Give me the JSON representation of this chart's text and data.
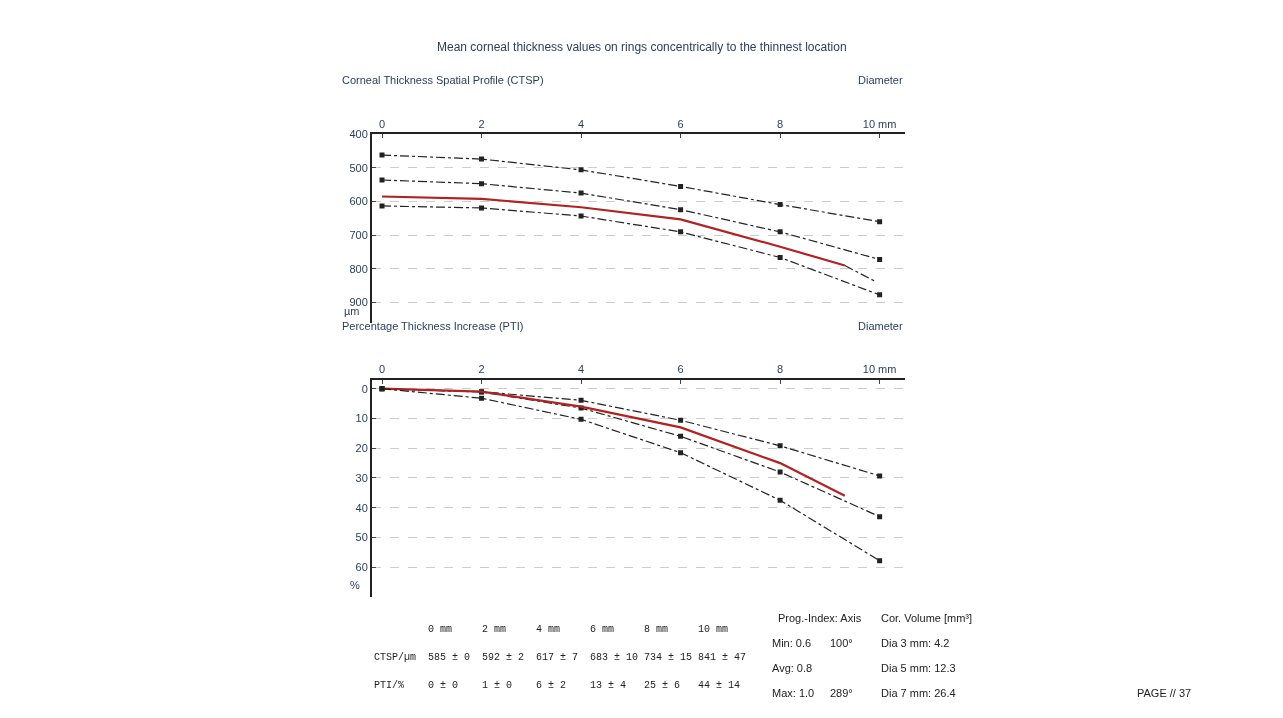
{
  "chart_data": [
    {
      "type": "line",
      "title": "Mean corneal thickness values on rings concentrically to the thinnest location",
      "subtitle": "Corneal Thickness Spatial Profile (CTSP)",
      "xlabel": "Diameter",
      "ylabel": "µm",
      "x": [
        0,
        2,
        4,
        6,
        8,
        10
      ],
      "series": [
        {
          "color": "#222222",
          "line_style": "dashed",
          "marker": "square",
          "values": [
            462,
            474,
            506,
            555,
            609,
            660
          ]
        },
        {
          "color": "#222222",
          "line_style": "dashed",
          "marker": "square",
          "values": [
            536,
            547,
            575,
            624,
            690,
            772
          ]
        },
        {
          "color": "#b22222",
          "line_style": "solid",
          "marker": "none",
          "x": [
            0,
            2,
            4,
            6,
            8,
            9.3
          ],
          "values": [
            585,
            592,
            617,
            653,
            734,
            790
          ]
        },
        {
          "color": "#222222",
          "line_style": "dashed",
          "marker": "none",
          "x": [
            9.3,
            9.9
          ],
          "values": [
            790,
            836
          ]
        },
        {
          "color": "#222222",
          "line_style": "dashed",
          "marker": "square",
          "values": [
            613,
            619,
            643,
            690,
            766,
            877
          ]
        }
      ],
      "xlim": [
        -0.2,
        10.5
      ],
      "xticks": [
        0,
        2,
        4,
        6,
        8,
        {
          "value": 10,
          "label": "10 mm"
        }
      ],
      "ylim": [
        960,
        400
      ],
      "yticks": [
        400,
        500,
        600,
        700,
        800,
        900
      ],
      "grid": "y"
    },
    {
      "type": "line",
      "title": "Percentage Thickness Increase (PTI)",
      "xlabel": "Diameter",
      "ylabel": "%",
      "x": [
        0,
        2,
        4,
        6,
        8,
        10
      ],
      "series": [
        {
          "color": "#222222",
          "line_style": "dashed",
          "marker": "square",
          "values": [
            0,
            1,
            3.9,
            10.6,
            19.2,
            29.3
          ]
        },
        {
          "color": "#222222",
          "line_style": "dashed",
          "marker": "square",
          "values": [
            0,
            1.1,
            6.5,
            16,
            28,
            43
          ]
        },
        {
          "color": "#b22222",
          "line_style": "solid",
          "marker": "none",
          "x": [
            0,
            2,
            4,
            6,
            8,
            9.3
          ],
          "values": [
            0,
            1,
            6,
            13,
            25,
            36
          ]
        },
        {
          "color": "#222222",
          "line_style": "dashed",
          "marker": "square",
          "values": [
            0,
            3.2,
            10.3,
            21.5,
            37.5,
            57.8
          ]
        }
      ],
      "xlim": [
        -0.2,
        10.5
      ],
      "xticks": [
        0,
        2,
        4,
        6,
        8,
        {
          "value": 10,
          "label": "10 mm"
        }
      ],
      "ylim": [
        70,
        -3
      ],
      "yticks": [
        0,
        10,
        20,
        30,
        40,
        50,
        60
      ],
      "grid": "y"
    },
    {
      "type": "other",
      "annotations": [
        "0 mm",
        "2 mm",
        "4 mm",
        "6 mm",
        "8 mm",
        "10 mm",
        "CTSP/µm",
        "585 ± 0",
        "592 ± 2",
        "617 ± 7",
        "683 ± 10",
        "734 ± 15",
        "841 ± 47",
        "PTI/%",
        "0 ± 0",
        "1 ± 0",
        "6 ± 2",
        "13 ± 4",
        "25 ± 6",
        "44 ± 14",
        "Prog.-Index: Axis",
        "Min: 0.6",
        "100°",
        "Avg: 0.8",
        "Max: 1.0",
        "289°",
        "Cor. Volume [mm³]",
        "Dia 3 mm: 4.2",
        "Dia 5 mm: 12.3",
        "Dia 7 mm: 26.4",
        "PAGE // 37"
      ]
    }
  ]
}
